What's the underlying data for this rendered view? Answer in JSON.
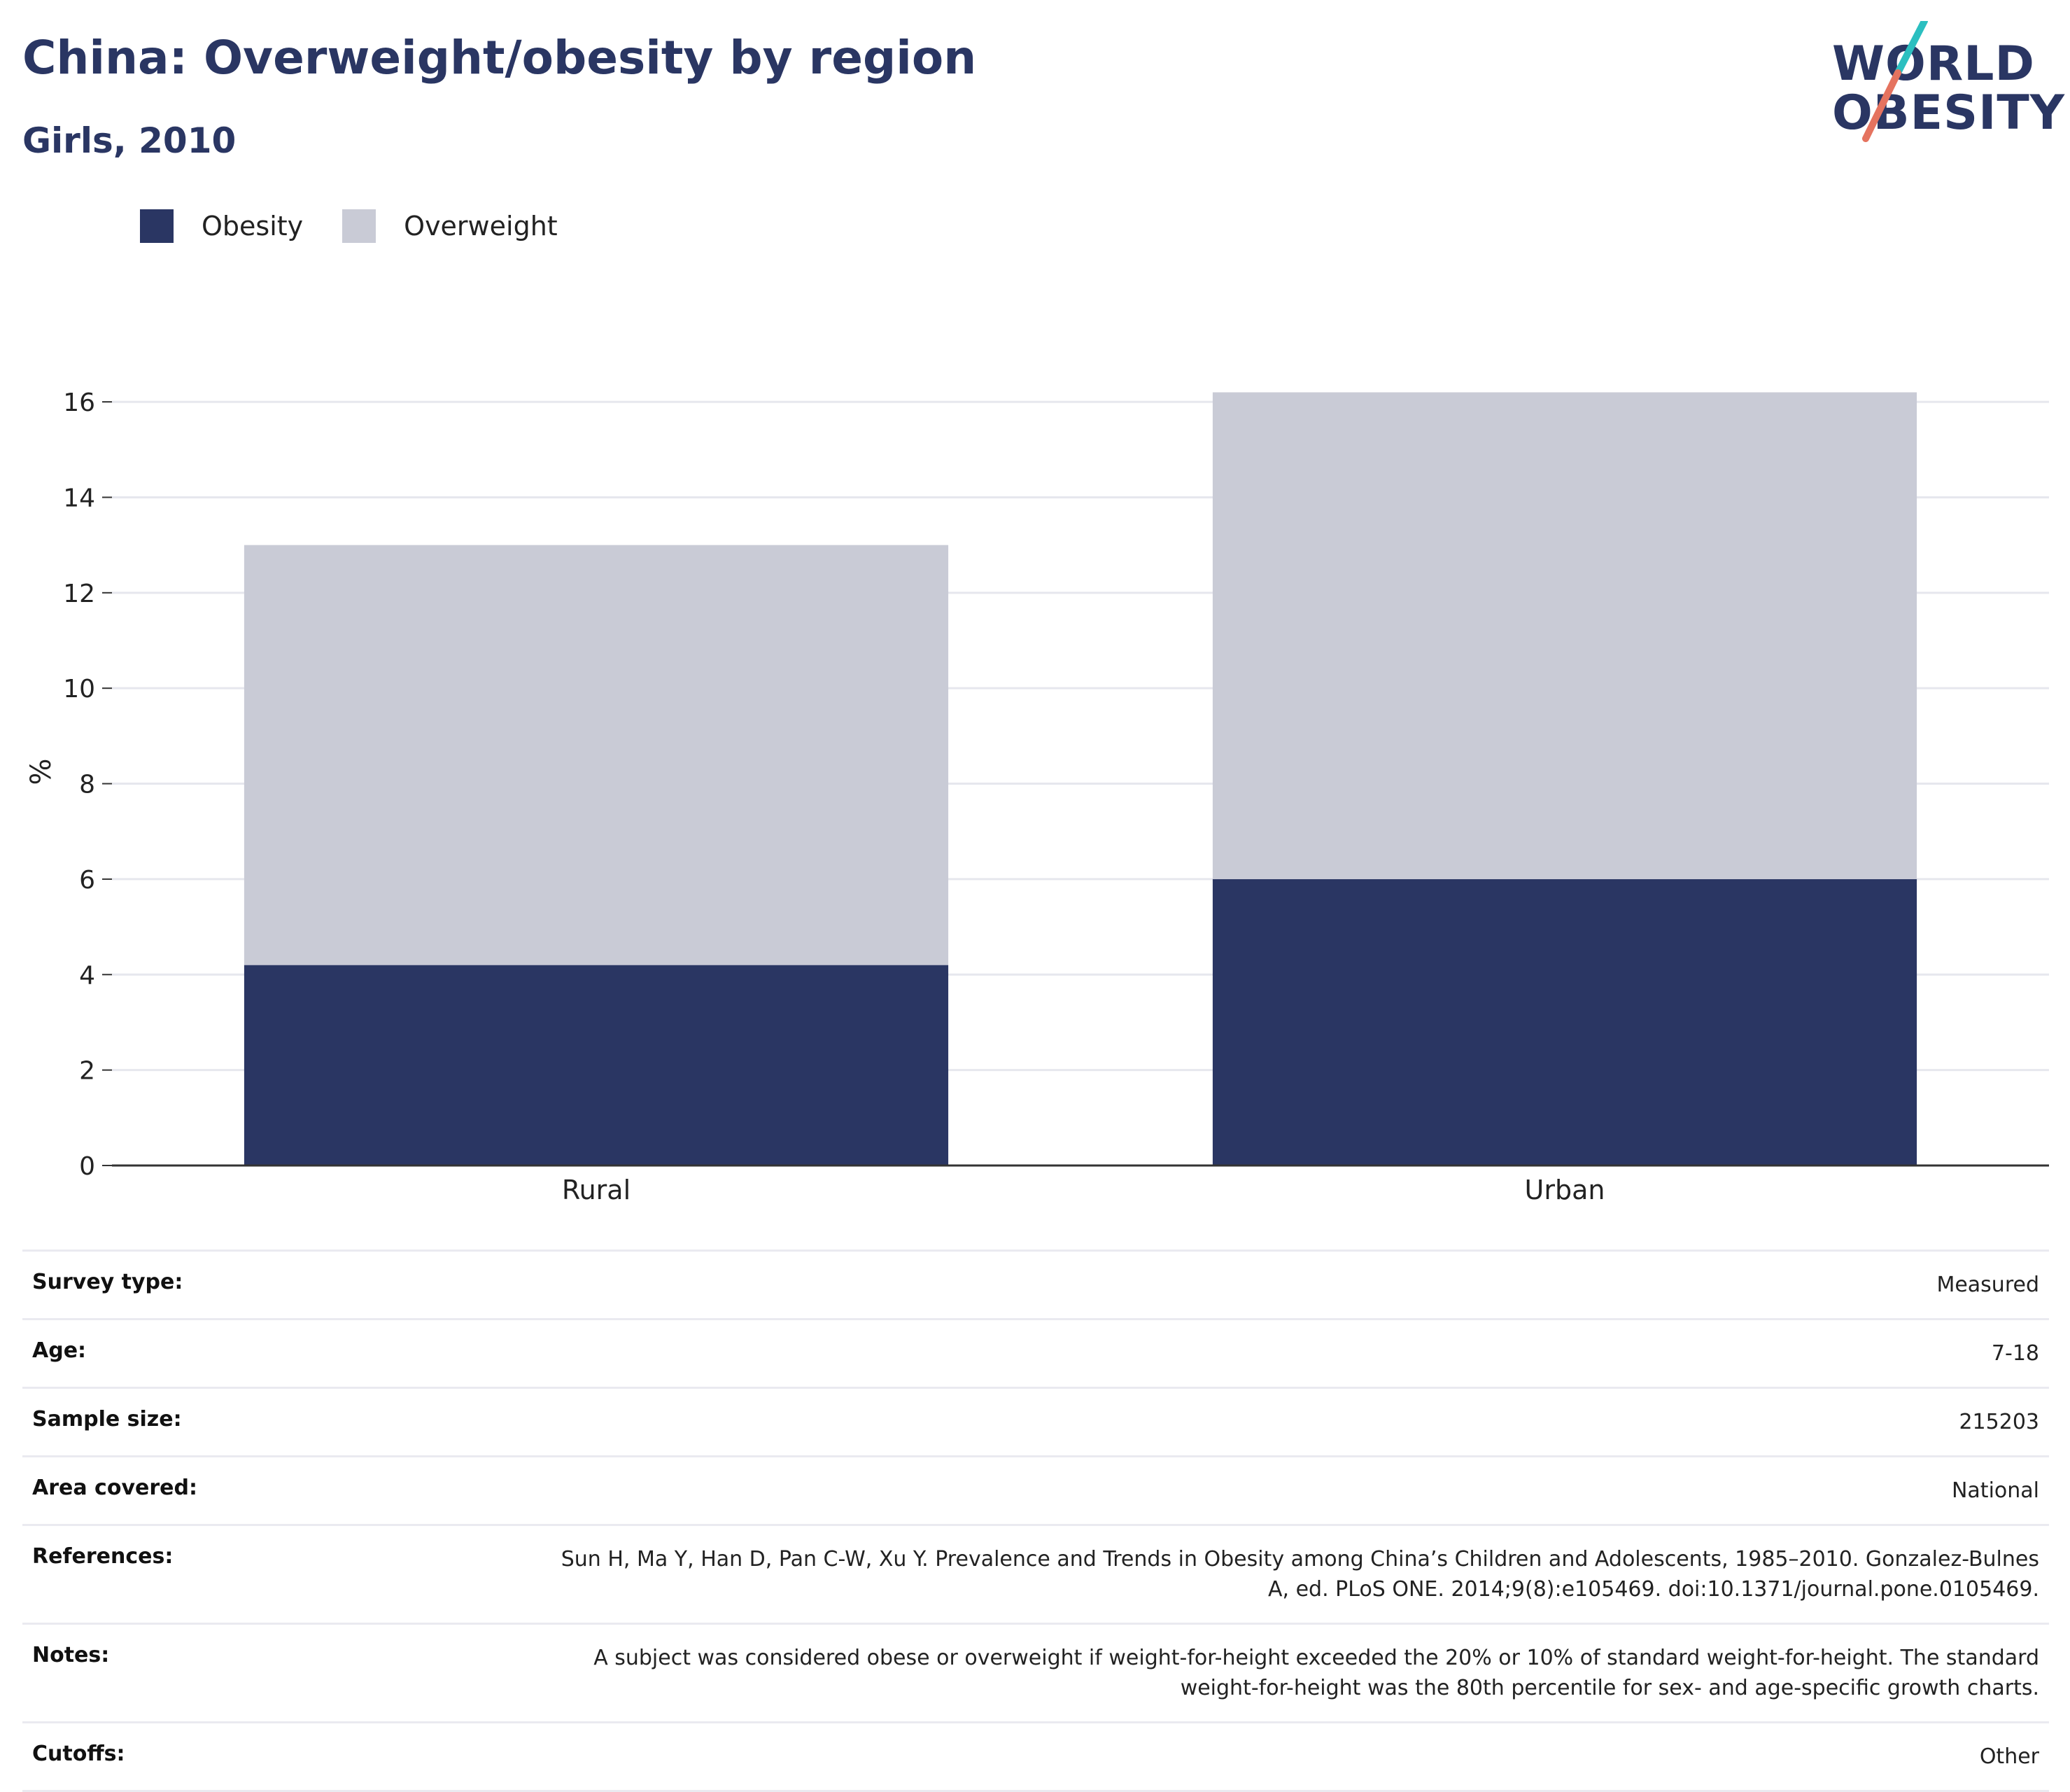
{
  "header": {
    "title": "China: Overweight/obesity by region",
    "subtitle": "Girls, 2010"
  },
  "logo": {
    "line1": "WORLD",
    "line2": "OBESITY",
    "colors": {
      "text": "#2a3663",
      "slash_teal": "#2bbfc0",
      "slash_coral": "#e5735f"
    }
  },
  "legend": [
    {
      "label": "Obesity",
      "color": "#2a3663"
    },
    {
      "label": "Overweight",
      "color": "#c9cbd6"
    }
  ],
  "chart_data": {
    "type": "bar",
    "stacked": true,
    "categories": [
      "Rural",
      "Urban"
    ],
    "series": [
      {
        "name": "Obesity",
        "color": "#2a3663",
        "values": [
          4.2,
          6.0
        ]
      },
      {
        "name": "Overweight",
        "color": "#c9cbd6",
        "values": [
          8.8,
          10.2
        ]
      }
    ],
    "ylabel": "%",
    "xlabel": "",
    "ylim": [
      0,
      16.5
    ],
    "yticks": [
      0,
      2,
      4,
      6,
      8,
      10,
      12,
      14,
      16
    ],
    "grid": true,
    "legend_position": "top-left"
  },
  "info": [
    {
      "label": "Survey type:",
      "value": "Measured"
    },
    {
      "label": "Age:",
      "value": "7-18"
    },
    {
      "label": "Sample size:",
      "value": "215203"
    },
    {
      "label": "Area covered:",
      "value": "National"
    },
    {
      "label": "References:",
      "value": "Sun H, Ma Y, Han D, Pan C-W, Xu Y. Prevalence and Trends in Obesity among China’s Children and Adolescents, 1985–2010. Gonzalez-Bulnes A, ed. PLoS ONE. 2014;9(8):e105469. doi:10.1371/journal.pone.0105469."
    },
    {
      "label": "Notes:",
      "value": "A subject was considered obese or overweight if weight-for-height exceeded the 20% or 10% of standard weight-for-height. The standard weight-for-height was the 80th percentile for sex- and age-specific growth charts."
    },
    {
      "label": "Cutoffs:",
      "value": "Other"
    }
  ]
}
